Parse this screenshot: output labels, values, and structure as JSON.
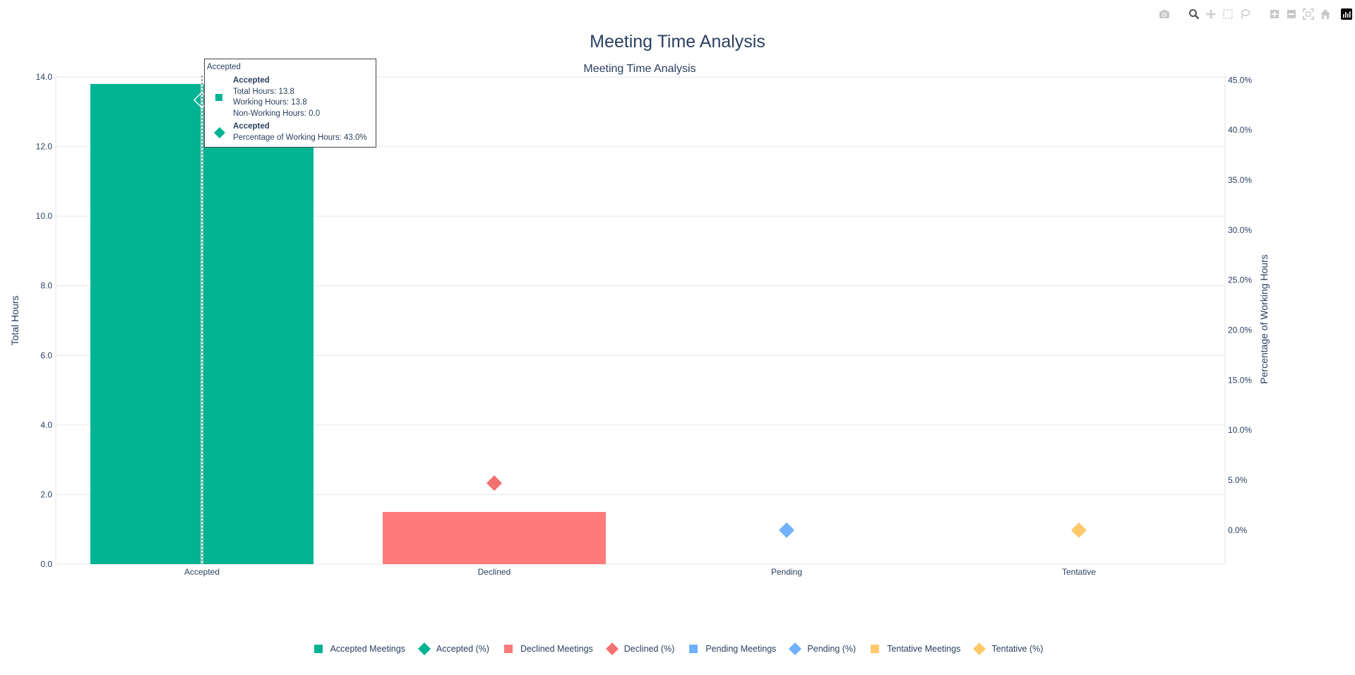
{
  "page_title": "Meeting Time Analysis",
  "modebar": {
    "buttons": [
      "camera-icon",
      "zoom-icon",
      "pan-icon",
      "box-select-icon",
      "lasso-select-icon",
      "zoom-in-icon",
      "zoom-out-icon",
      "autoscale-icon",
      "reset-axes-icon"
    ],
    "logo": "plotly-logo-icon"
  },
  "chart_data": {
    "type": "bar",
    "title": "Meeting Time Analysis",
    "categories": [
      "Accepted",
      "Declined",
      "Pending",
      "Tentative"
    ],
    "ylabel": "Total Hours",
    "y2label": "Percentage of Working Hours",
    "ylim": [
      0,
      14
    ],
    "y_ticks": [
      "0.0",
      "2.0",
      "4.0",
      "6.0",
      "8.0",
      "10.0",
      "12.0",
      "14.0"
    ],
    "y2lim": [
      -3.4,
      45.3
    ],
    "y2_ticks": [
      "0.0%",
      "5.0%",
      "10.0%",
      "15.0%",
      "20.0%",
      "25.0%",
      "30.0%",
      "35.0%",
      "40.0%",
      "45.0%"
    ],
    "grid": true,
    "legend_position": "bottom-center",
    "series": [
      {
        "name": "Accepted Meetings",
        "kind": "bar",
        "axis": "y",
        "category": "Accepted",
        "value": 13.8,
        "color": "#00b493"
      },
      {
        "name": "Accepted (%)",
        "kind": "marker",
        "axis": "y2",
        "category": "Accepted",
        "value": 43.0,
        "color": "#00b493"
      },
      {
        "name": "Declined Meetings",
        "kind": "bar",
        "axis": "y",
        "category": "Declined",
        "value": 1.5,
        "color": "#ff7b7b"
      },
      {
        "name": "Declined (%)",
        "kind": "marker",
        "axis": "y2",
        "category": "Declined",
        "value": 4.7,
        "color": "#f4706f"
      },
      {
        "name": "Pending Meetings",
        "kind": "bar",
        "axis": "y",
        "category": "Pending",
        "value": 0,
        "color": "#6fb0ff"
      },
      {
        "name": "Pending (%)",
        "kind": "marker",
        "axis": "y2",
        "category": "Pending",
        "value": 0,
        "color": "#6fb0ff"
      },
      {
        "name": "Tentative Meetings",
        "kind": "bar",
        "axis": "y",
        "category": "Tentative",
        "value": 0,
        "color": "#ffc96b"
      },
      {
        "name": "Tentative (%)",
        "kind": "marker",
        "axis": "y2",
        "category": "Tentative",
        "value": 0,
        "color": "#ffc96b"
      }
    ]
  },
  "tooltip": {
    "header": "Accepted",
    "bar_block": {
      "name": "Accepted",
      "lines": [
        "Total Hours: 13.8",
        "Working Hours: 13.8",
        "Non-Working Hours: 0.0"
      ],
      "color": "#00b493"
    },
    "marker_block": {
      "name": "Accepted",
      "lines": [
        "Percentage of Working Hours: 43.0%"
      ],
      "color": "#00b493"
    }
  }
}
